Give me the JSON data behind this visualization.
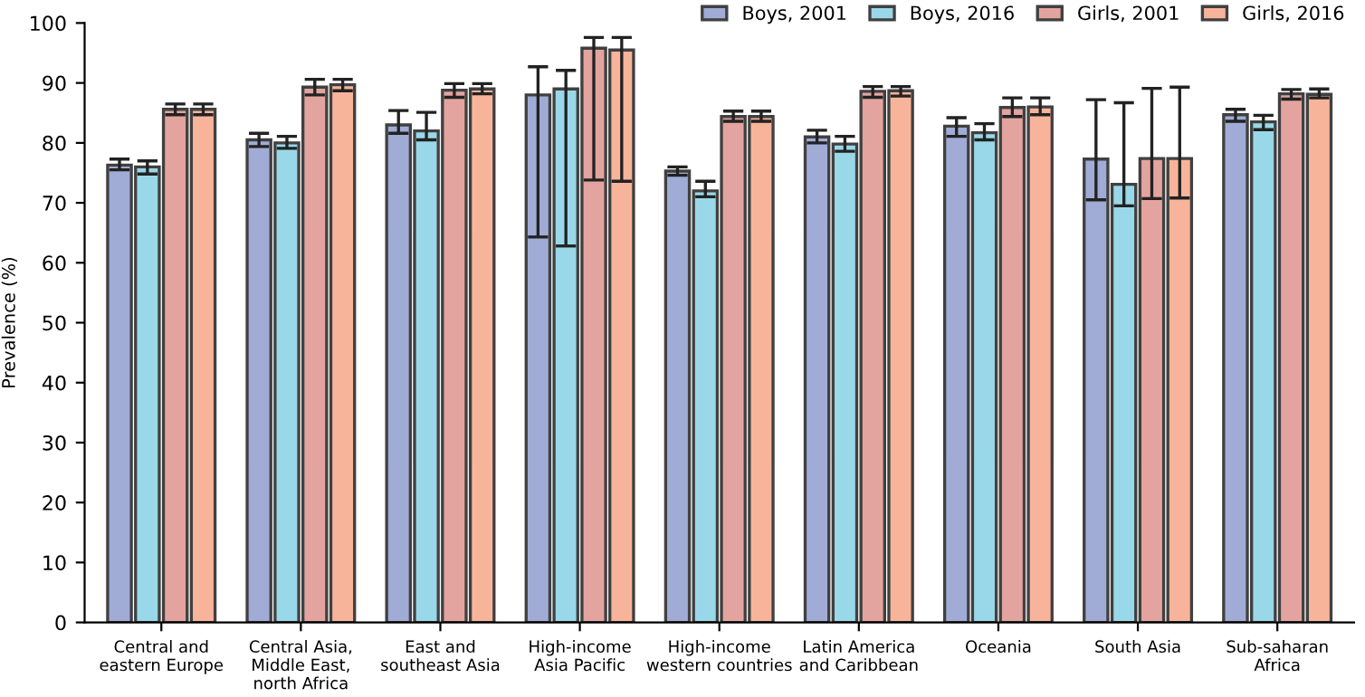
{
  "chart_data": {
    "type": "bar",
    "ylabel": "Prevalence (%)",
    "categories": [
      "Central and\neastern Europe",
      "Central Asia,\nMiddle East,\nnorth Africa",
      "East and\nsoutheast Asia",
      "High-income\nAsia Pacific",
      "High-income\nwestern countries",
      "Latin America\nand Caribbean",
      "Oceania",
      "South Asia",
      "Sub-saharan\nAfrica"
    ],
    "series": [
      {
        "name": "Boys, 2001",
        "color": "#a0acd6",
        "values": [
          76.3,
          80.5,
          83,
          88,
          75.3,
          81,
          82.8,
          77.3,
          84.7
        ],
        "errors": [
          [
            75.5,
            77.3
          ],
          [
            79.4,
            81.6
          ],
          [
            81.6,
            85.4
          ],
          [
            64.3,
            92.7
          ],
          [
            74.6,
            76.0
          ],
          [
            80.0,
            82.1
          ],
          [
            81.1,
            84.2
          ],
          [
            70.5,
            87.2
          ],
          [
            83.6,
            85.6
          ]
        ]
      },
      {
        "name": "Boys, 2016",
        "color": "#99d8e8",
        "values": [
          76,
          80,
          82,
          89,
          72,
          79.8,
          81.7,
          73.1,
          83.5
        ],
        "errors": [
          [
            74.8,
            77.0
          ],
          [
            79.1,
            81.1
          ],
          [
            80.5,
            85.1
          ],
          [
            62.8,
            92.1
          ],
          [
            71.0,
            73.6
          ],
          [
            78.6,
            81.1
          ],
          [
            80.5,
            83.2
          ],
          [
            69.5,
            86.7
          ],
          [
            82.2,
            84.6
          ]
        ]
      },
      {
        "name": "Girls, 2001",
        "color": "#e3a49f",
        "values": [
          85.6,
          89.3,
          88.8,
          95.8,
          84.4,
          88.6,
          85.9,
          77.4,
          88.2
        ],
        "errors": [
          [
            84.7,
            86.5
          ],
          [
            88.0,
            90.6
          ],
          [
            87.6,
            89.9
          ],
          [
            73.8,
            97.6
          ],
          [
            83.6,
            85.3
          ],
          [
            87.6,
            89.4
          ],
          [
            84.4,
            87.5
          ],
          [
            70.7,
            89.1
          ],
          [
            87.3,
            88.9
          ]
        ]
      },
      {
        "name": "Girls, 2016",
        "color": "#f8b49a",
        "values": [
          85.6,
          89.7,
          89.0,
          95.5,
          84.4,
          88.7,
          86,
          77.4,
          88.1
        ],
        "errors": [
          [
            84.7,
            86.5
          ],
          [
            88.7,
            90.6
          ],
          [
            88.2,
            89.9
          ],
          [
            73.6,
            97.6
          ],
          [
            83.6,
            85.3
          ],
          [
            87.8,
            89.4
          ],
          [
            84.7,
            87.5
          ],
          [
            70.8,
            89.3
          ],
          [
            87.5,
            89.0
          ]
        ]
      }
    ],
    "ylim": [
      0,
      100
    ],
    "yticks": [
      0,
      10,
      20,
      30,
      40,
      50,
      60,
      70,
      80,
      90,
      100
    ],
    "grid": false,
    "legend": "top right"
  }
}
